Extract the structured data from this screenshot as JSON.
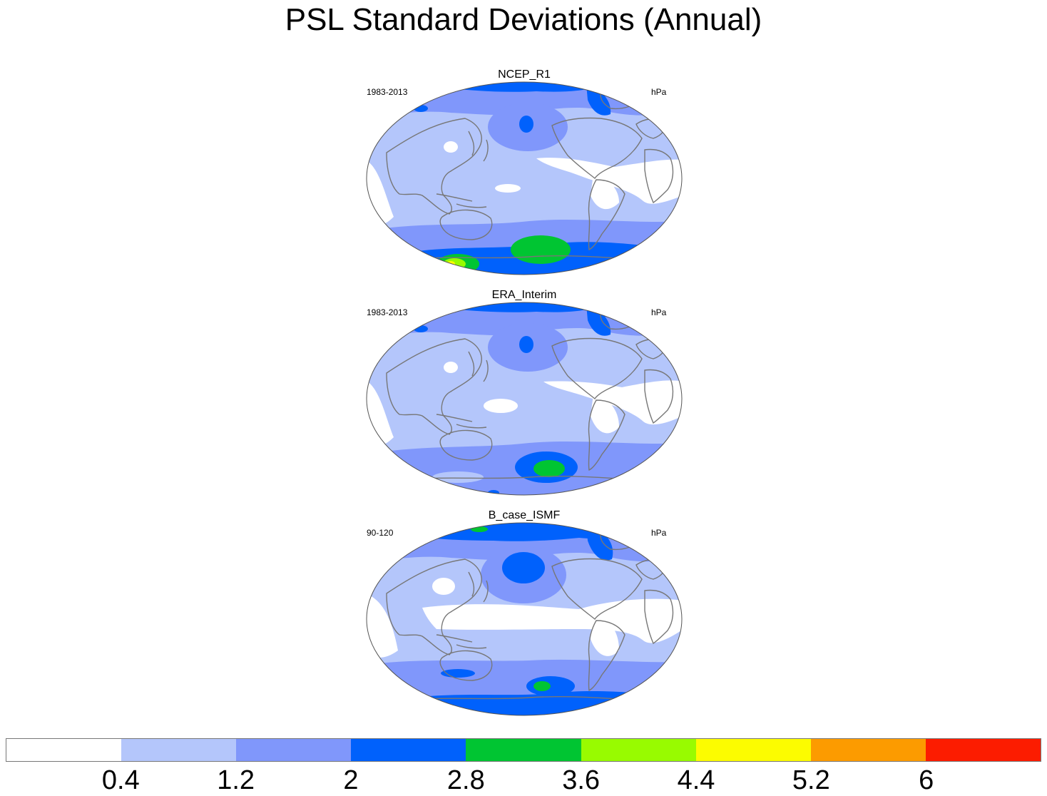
{
  "title": "PSL Standard Deviations (Annual)",
  "panels": [
    {
      "name": "NCEP_R1",
      "period": "1983-2013",
      "units": "hPa"
    },
    {
      "name": "ERA_Interim",
      "period": "1983-2013",
      "units": "hPa"
    },
    {
      "name": "B_case_ISMF",
      "period": "90-120",
      "units": "hPa"
    }
  ],
  "colorbar": {
    "levels": [
      "0.4",
      "1.2",
      "2",
      "2.8",
      "3.6",
      "4.4",
      "5.2",
      "6"
    ],
    "colors": [
      "#ffffff",
      "#b4c6fb",
      "#8097fb",
      "#0061fc",
      "#00c532",
      "#98fb00",
      "#fcfc00",
      "#fc9b00",
      "#fc1c00"
    ]
  },
  "map_colors": {
    "coastline": "#777777",
    "outline": "#555555"
  }
}
